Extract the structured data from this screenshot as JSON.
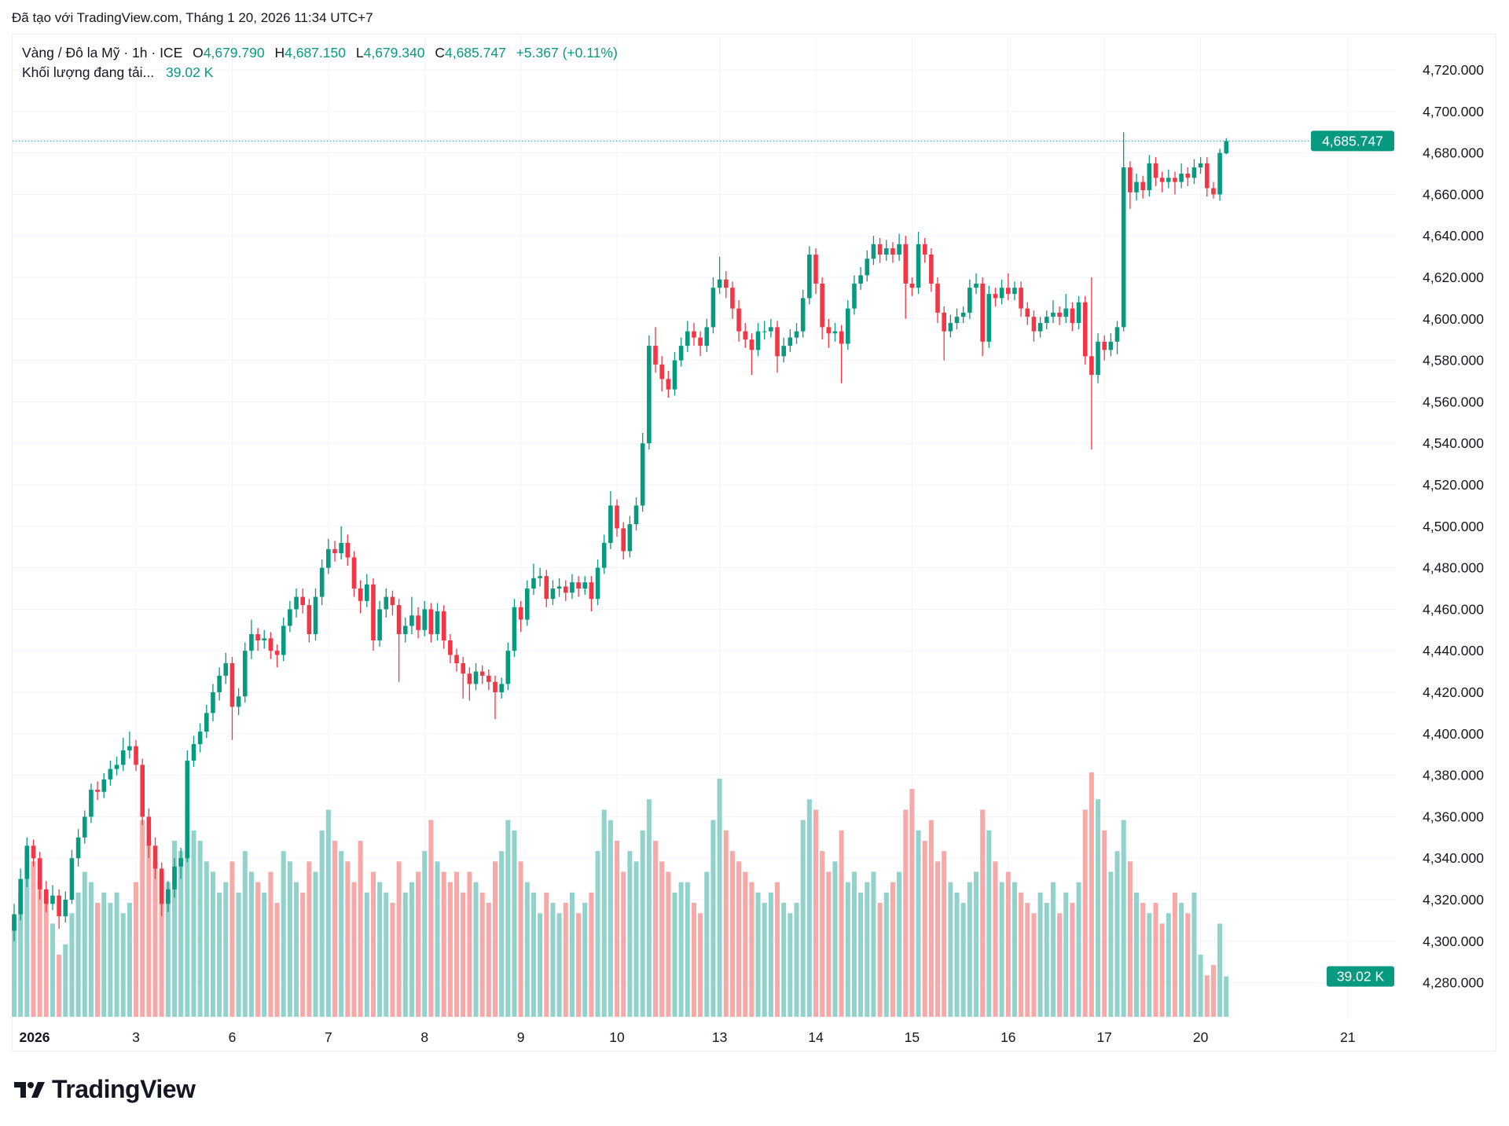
{
  "created_text": "Đã tạo với TradingView.com, Tháng 1 20, 2026 11:34 UTC+7",
  "legend": {
    "symbol": "Vàng / Đô la Mỹ · 1h · ICE",
    "o_label": "O",
    "o": "4,679.790",
    "h_label": "H",
    "h": "4,687.150",
    "l_label": "L",
    "l": "4,679.340",
    "c_label": "C",
    "c": "4,685.747",
    "change": "+5.367 (+0.11%)",
    "volume_label": "Khối lượng đang tải...",
    "volume_value": "39.02 K"
  },
  "last_price_label": "4,685.747",
  "last_volume_label": "39.02 K",
  "logo_text": "TradingView",
  "colors": {
    "up": "#089981",
    "down": "#f23645",
    "up_volume": "#92d2cc",
    "down_volume": "#f7a9a7",
    "grid": "#f0f3fa",
    "accent": "#089981"
  },
  "chart_data": {
    "type": "candlestick",
    "interval": "1h",
    "ylim": [
      4270,
      4740
    ],
    "grid": true,
    "yticks": [
      "4,720.000",
      "4,700.000",
      "4,680.000",
      "4,660.000",
      "4,640.000",
      "4,620.000",
      "4,600.000",
      "4,580.000",
      "4,560.000",
      "4,540.000",
      "4,520.000",
      "4,500.000",
      "4,480.000",
      "4,460.000",
      "4,440.000",
      "4,420.000",
      "4,400.000",
      "4,380.000",
      "4,360.000",
      "4,340.000",
      "4,320.000",
      "4,300.000",
      "4,280.000"
    ],
    "xticks": [
      {
        "label": "2026",
        "bold": true,
        "start_candle": 0
      },
      {
        "label": "3",
        "start_candle": 19
      },
      {
        "label": "6",
        "start_candle": 34
      },
      {
        "label": "7",
        "start_candle": 49
      },
      {
        "label": "8",
        "start_candle": 64
      },
      {
        "label": "9",
        "start_candle": 79
      },
      {
        "label": "10",
        "start_candle": 94
      },
      {
        "label": "13",
        "start_candle": 110
      },
      {
        "label": "14",
        "start_candle": 125
      },
      {
        "label": "15",
        "start_candle": 140
      },
      {
        "label": "16",
        "start_candle": 155
      },
      {
        "label": "17",
        "start_candle": 170
      },
      {
        "label": "20",
        "start_candle": 185
      },
      {
        "label": "21",
        "start_candle": 199
      }
    ],
    "ohlc": [
      [
        4305,
        4318,
        4300,
        4313
      ],
      [
        4313,
        4335,
        4310,
        4330
      ],
      [
        4330,
        4350,
        4326,
        4346
      ],
      [
        4346,
        4349,
        4336,
        4340
      ],
      [
        4340,
        4343,
        4320,
        4325
      ],
      [
        4325,
        4329,
        4314,
        4318
      ],
      [
        4318,
        4327,
        4315,
        4322
      ],
      [
        4322,
        4325,
        4306,
        4312
      ],
      [
        4312,
        4324,
        4309,
        4320
      ],
      [
        4320,
        4344,
        4318,
        4340
      ],
      [
        4340,
        4354,
        4336,
        4350
      ],
      [
        4350,
        4363,
        4347,
        4360
      ],
      [
        4360,
        4376,
        4357,
        4373
      ],
      [
        4373,
        4377,
        4368,
        4372
      ],
      [
        4372,
        4381,
        4369,
        4378
      ],
      [
        4378,
        4387,
        4375,
        4383
      ],
      [
        4383,
        4389,
        4380,
        4385
      ],
      [
        4385,
        4398,
        4382,
        4392
      ],
      [
        4392,
        4401,
        4388,
        4394
      ],
      [
        4394,
        4397,
        4382,
        4385
      ],
      [
        4385,
        4388,
        4356,
        4360
      ],
      [
        4360,
        4364,
        4340,
        4346
      ],
      [
        4346,
        4350,
        4330,
        4335
      ],
      [
        4335,
        4338,
        4312,
        4318
      ],
      [
        4318,
        4329,
        4314,
        4325
      ],
      [
        4325,
        4340,
        4321,
        4336
      ],
      [
        4336,
        4345,
        4330,
        4340
      ],
      [
        4340,
        4392,
        4338,
        4387
      ],
      [
        4387,
        4399,
        4384,
        4395
      ],
      [
        4395,
        4405,
        4391,
        4401
      ],
      [
        4401,
        4414,
        4398,
        4410
      ],
      [
        4410,
        4424,
        4406,
        4420
      ],
      [
        4420,
        4432,
        4416,
        4428
      ],
      [
        4428,
        4439,
        4424,
        4434
      ],
      [
        4434,
        4437,
        4397,
        4413
      ],
      [
        4413,
        4422,
        4409,
        4418
      ],
      [
        4418,
        4444,
        4415,
        4440
      ],
      [
        4440,
        4455,
        4436,
        4448
      ],
      [
        4448,
        4451,
        4440,
        4445
      ],
      [
        4445,
        4450,
        4441,
        4446
      ],
      [
        4446,
        4449,
        4436,
        4440
      ],
      [
        4440,
        4443,
        4432,
        4438
      ],
      [
        4438,
        4456,
        4435,
        4452
      ],
      [
        4452,
        4464,
        4449,
        4460
      ],
      [
        4460,
        4470,
        4456,
        4466
      ],
      [
        4466,
        4470,
        4458,
        4462
      ],
      [
        4462,
        4465,
        4444,
        4448
      ],
      [
        4448,
        4470,
        4445,
        4466
      ],
      [
        4466,
        4484,
        4462,
        4480
      ],
      [
        4480,
        4494,
        4477,
        4489
      ],
      [
        4489,
        4493,
        4483,
        4487
      ],
      [
        4487,
        4500,
        4484,
        4492
      ],
      [
        4492,
        4496,
        4481,
        4485
      ],
      [
        4485,
        4488,
        4466,
        4470
      ],
      [
        4470,
        4474,
        4458,
        4464
      ],
      [
        4464,
        4477,
        4461,
        4472
      ],
      [
        4472,
        4475,
        4440,
        4445
      ],
      [
        4445,
        4464,
        4442,
        4460
      ],
      [
        4460,
        4470,
        4456,
        4466
      ],
      [
        4466,
        4469,
        4457,
        4462
      ],
      [
        4462,
        4465,
        4425,
        4448
      ],
      [
        4448,
        4456,
        4444,
        4452
      ],
      [
        4452,
        4466,
        4448,
        4457
      ],
      [
        4457,
        4461,
        4446,
        4450
      ],
      [
        4450,
        4464,
        4447,
        4460
      ],
      [
        4460,
        4463,
        4444,
        4448
      ],
      [
        4448,
        4463,
        4445,
        4459
      ],
      [
        4459,
        4462,
        4441,
        4445
      ],
      [
        4445,
        4448,
        4434,
        4438
      ],
      [
        4438,
        4441,
        4430,
        4434
      ],
      [
        4434,
        4437,
        4417,
        4429
      ],
      [
        4429,
        4432,
        4416,
        4424
      ],
      [
        4424,
        4434,
        4421,
        4430
      ],
      [
        4430,
        4433,
        4424,
        4428
      ],
      [
        4428,
        4431,
        4421,
        4425
      ],
      [
        4425,
        4428,
        4407,
        4420
      ],
      [
        4420,
        4427,
        4417,
        4424
      ],
      [
        4424,
        4444,
        4421,
        4440
      ],
      [
        4440,
        4465,
        4437,
        4461
      ],
      [
        4461,
        4464,
        4449,
        4455
      ],
      [
        4455,
        4474,
        4452,
        4470
      ],
      [
        4470,
        4482,
        4467,
        4475
      ],
      [
        4475,
        4480,
        4471,
        4476
      ],
      [
        4476,
        4479,
        4461,
        4465
      ],
      [
        4465,
        4474,
        4462,
        4470
      ],
      [
        4470,
        4475,
        4466,
        4471
      ],
      [
        4471,
        4474,
        4464,
        4468
      ],
      [
        4468,
        4477,
        4465,
        4473
      ],
      [
        4473,
        4476,
        4466,
        4470
      ],
      [
        4470,
        4476,
        4467,
        4473
      ],
      [
        4473,
        4476,
        4459,
        4465
      ],
      [
        4465,
        4484,
        4462,
        4480
      ],
      [
        4480,
        4496,
        4477,
        4492
      ],
      [
        4492,
        4517,
        4489,
        4510
      ],
      [
        4510,
        4513,
        4495,
        4499
      ],
      [
        4499,
        4502,
        4484,
        4488
      ],
      [
        4488,
        4505,
        4485,
        4501
      ],
      [
        4501,
        4514,
        4498,
        4510
      ],
      [
        4510,
        4545,
        4507,
        4540
      ],
      [
        4540,
        4592,
        4537,
        4587
      ],
      [
        4587,
        4596,
        4574,
        4578
      ],
      [
        4578,
        4582,
        4565,
        4571
      ],
      [
        4571,
        4575,
        4562,
        4566
      ],
      [
        4566,
        4584,
        4563,
        4580
      ],
      [
        4580,
        4591,
        4577,
        4587
      ],
      [
        4587,
        4599,
        4584,
        4594
      ],
      [
        4594,
        4598,
        4587,
        4591
      ],
      [
        4591,
        4594,
        4582,
        4587
      ],
      [
        4587,
        4600,
        4584,
        4596
      ],
      [
        4596,
        4620,
        4593,
        4615
      ],
      [
        4615,
        4630,
        4612,
        4619
      ],
      [
        4619,
        4623,
        4610,
        4615
      ],
      [
        4615,
        4618,
        4600,
        4605
      ],
      [
        4605,
        4609,
        4589,
        4594
      ],
      [
        4594,
        4598,
        4586,
        4590
      ],
      [
        4590,
        4593,
        4573,
        4585
      ],
      [
        4585,
        4598,
        4582,
        4594
      ],
      [
        4594,
        4599,
        4590,
        4594
      ],
      [
        4594,
        4600,
        4591,
        4596
      ],
      [
        4596,
        4599,
        4574,
        4582
      ],
      [
        4582,
        4591,
        4579,
        4587
      ],
      [
        4587,
        4595,
        4584,
        4591
      ],
      [
        4591,
        4598,
        4588,
        4594
      ],
      [
        4594,
        4614,
        4591,
        4610
      ],
      [
        4610,
        4635,
        4607,
        4631
      ],
      [
        4631,
        4634,
        4612,
        4617
      ],
      [
        4617,
        4620,
        4590,
        4596
      ],
      [
        4596,
        4600,
        4586,
        4593
      ],
      [
        4593,
        4598,
        4589,
        4594
      ],
      [
        4594,
        4597,
        4569,
        4588
      ],
      [
        4588,
        4609,
        4585,
        4605
      ],
      [
        4605,
        4621,
        4602,
        4617
      ],
      [
        4617,
        4625,
        4614,
        4621
      ],
      [
        4621,
        4633,
        4618,
        4629
      ],
      [
        4629,
        4640,
        4626,
        4636
      ],
      [
        4636,
        4639,
        4627,
        4631
      ],
      [
        4631,
        4638,
        4628,
        4634
      ],
      [
        4634,
        4637,
        4627,
        4631
      ],
      [
        4631,
        4641,
        4628,
        4636
      ],
      [
        4636,
        4640,
        4600,
        4617
      ],
      [
        4617,
        4620,
        4611,
        4615
      ],
      [
        4615,
        4642,
        4612,
        4636
      ],
      [
        4636,
        4639,
        4627,
        4631
      ],
      [
        4631,
        4634,
        4613,
        4617
      ],
      [
        4617,
        4620,
        4598,
        4603
      ],
      [
        4603,
        4606,
        4580,
        4594
      ],
      [
        4594,
        4602,
        4591,
        4598
      ],
      [
        4598,
        4605,
        4595,
        4601
      ],
      [
        4601,
        4606,
        4598,
        4603
      ],
      [
        4603,
        4619,
        4600,
        4615
      ],
      [
        4615,
        4622,
        4612,
        4617
      ],
      [
        4617,
        4620,
        4582,
        4589
      ],
      [
        4589,
        4616,
        4586,
        4612
      ],
      [
        4612,
        4615,
        4606,
        4610
      ],
      [
        4610,
        4619,
        4607,
        4615
      ],
      [
        4615,
        4622,
        4609,
        4612
      ],
      [
        4612,
        4618,
        4609,
        4615
      ],
      [
        4615,
        4618,
        4601,
        4605
      ],
      [
        4605,
        4608,
        4597,
        4601
      ],
      [
        4601,
        4604,
        4589,
        4594
      ],
      [
        4594,
        4601,
        4591,
        4598
      ],
      [
        4598,
        4604,
        4595,
        4601
      ],
      [
        4601,
        4609,
        4598,
        4603
      ],
      [
        4603,
        4606,
        4597,
        4601
      ],
      [
        4601,
        4612,
        4598,
        4605
      ],
      [
        4605,
        4608,
        4594,
        4598
      ],
      [
        4598,
        4611,
        4595,
        4608
      ],
      [
        4608,
        4611,
        4578,
        4582
      ],
      [
        4582,
        4620,
        4537,
        4573
      ],
      [
        4573,
        4593,
        4569,
        4589
      ],
      [
        4589,
        4592,
        4580,
        4585
      ],
      [
        4585,
        4593,
        4582,
        4589
      ],
      [
        4589,
        4599,
        4583,
        4596
      ],
      [
        4596,
        4690,
        4594,
        4673
      ],
      [
        4673,
        4676,
        4653,
        4661
      ],
      [
        4661,
        4670,
        4657,
        4666
      ],
      [
        4666,
        4669,
        4658,
        4662
      ],
      [
        4662,
        4679,
        4659,
        4675
      ],
      [
        4675,
        4678,
        4664,
        4668
      ],
      [
        4668,
        4671,
        4661,
        4666
      ],
      [
        4666,
        4672,
        4663,
        4668
      ],
      [
        4668,
        4671,
        4660,
        4666
      ],
      [
        4666,
        4675,
        4663,
        4670
      ],
      [
        4670,
        4673,
        4664,
        4668
      ],
      [
        4668,
        4677,
        4665,
        4673
      ],
      [
        4673,
        4678,
        4670,
        4675
      ],
      [
        4675,
        4678,
        4659,
        4663
      ],
      [
        4663,
        4666,
        4658,
        4660
      ],
      [
        4660,
        4682,
        4657,
        4680
      ],
      [
        4679.79,
        4687.15,
        4679.34,
        4685.747
      ]
    ],
    "volume_k": [
      95,
      120,
      160,
      150,
      130,
      120,
      90,
      60,
      70,
      100,
      120,
      140,
      130,
      110,
      120,
      110,
      120,
      100,
      110,
      130,
      190,
      170,
      150,
      140,
      130,
      170,
      160,
      200,
      180,
      170,
      150,
      140,
      120,
      130,
      150,
      120,
      160,
      140,
      130,
      120,
      140,
      110,
      160,
      150,
      130,
      120,
      150,
      140,
      180,
      200,
      170,
      160,
      150,
      130,
      170,
      120,
      140,
      130,
      120,
      110,
      150,
      120,
      130,
      140,
      160,
      190,
      150,
      140,
      130,
      140,
      120,
      140,
      130,
      120,
      110,
      150,
      160,
      190,
      180,
      150,
      130,
      120,
      100,
      120,
      110,
      100,
      110,
      120,
      100,
      110,
      120,
      160,
      200,
      190,
      170,
      140,
      160,
      150,
      180,
      210,
      170,
      150,
      140,
      120,
      130,
      130,
      110,
      100,
      140,
      190,
      230,
      180,
      160,
      150,
      140,
      130,
      120,
      110,
      120,
      130,
      110,
      100,
      110,
      190,
      210,
      200,
      160,
      140,
      150,
      180,
      130,
      140,
      120,
      130,
      140,
      110,
      120,
      130,
      140,
      200,
      220,
      180,
      170,
      190,
      150,
      160,
      130,
      120,
      110,
      130,
      140,
      200,
      180,
      150,
      130,
      140,
      130,
      120,
      110,
      100,
      120,
      110,
      130,
      100,
      120,
      110,
      130,
      200,
      236,
      210,
      180,
      140,
      160,
      190,
      150,
      120,
      110,
      100,
      110,
      90,
      100,
      120,
      110,
      100,
      120,
      60,
      40,
      50,
      90,
      39.02
    ],
    "last_price": 4685.747,
    "last_volume_k": 39.02
  }
}
